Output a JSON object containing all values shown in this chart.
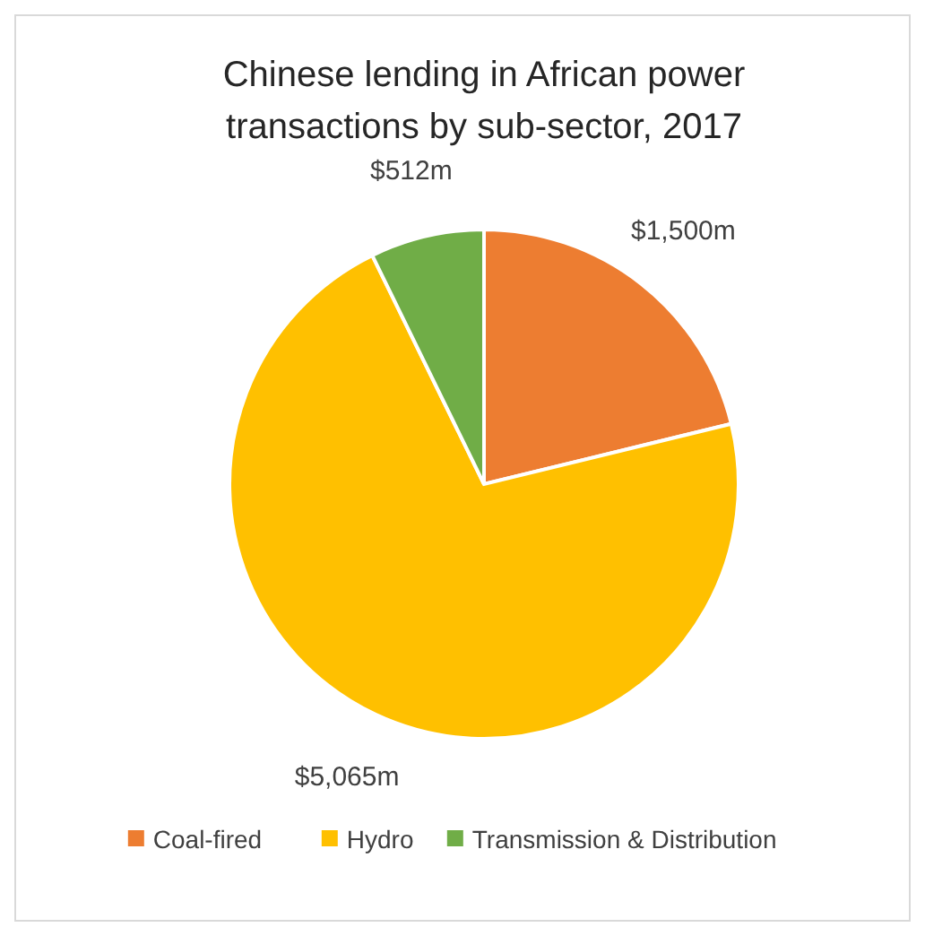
{
  "chart_data": {
    "type": "pie",
    "title": "Chinese lending in African power transactions by sub-sector, 2017",
    "categories": [
      "Coal-fired",
      "Hydro",
      "Transmission & Distribution"
    ],
    "values": [
      1500,
      5065,
      512
    ],
    "colors": [
      "#ed7d31",
      "#ffc000",
      "#70ad47"
    ],
    "value_labels": [
      "$1,500m",
      "$5,065m",
      "$512m"
    ],
    "legend": "bottom"
  }
}
